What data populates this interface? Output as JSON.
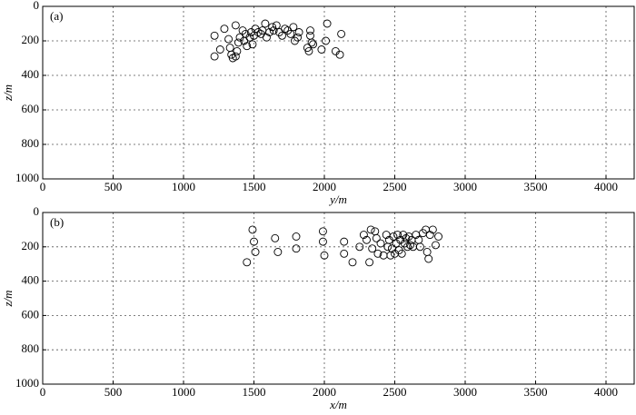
{
  "chart_data": [
    {
      "type": "scatter",
      "label": "(a)",
      "x_label": "y/m",
      "y_label": "z/m",
      "x": [
        1220,
        1220,
        1260,
        1290,
        1320,
        1330,
        1340,
        1350,
        1370,
        1370,
        1380,
        1390,
        1400,
        1420,
        1430,
        1440,
        1450,
        1470,
        1480,
        1490,
        1500,
        1510,
        1530,
        1550,
        1560,
        1580,
        1590,
        1610,
        1630,
        1640,
        1660,
        1680,
        1700,
        1720,
        1740,
        1760,
        1780,
        1790,
        1810,
        1820,
        1880,
        1890,
        1900,
        1900,
        1910,
        1920,
        1980,
        2010,
        2020,
        2080,
        2110,
        2120
      ],
      "y": [
        170,
        290,
        250,
        130,
        190,
        240,
        280,
        300,
        110,
        290,
        260,
        210,
        180,
        140,
        200,
        160,
        230,
        180,
        150,
        220,
        170,
        130,
        150,
        160,
        140,
        100,
        180,
        150,
        120,
        140,
        110,
        150,
        170,
        130,
        140,
        160,
        120,
        200,
        180,
        150,
        240,
        260,
        140,
        170,
        210,
        220,
        250,
        200,
        100,
        260,
        280,
        160
      ],
      "xlim": [
        0,
        4200
      ],
      "ylim": [
        1000,
        0
      ],
      "xticks": [
        0,
        500,
        1000,
        1500,
        2000,
        2500,
        3000,
        3500,
        4000
      ],
      "yticks": [
        0,
        200,
        400,
        600,
        800,
        1000
      ],
      "grid": true,
      "color": "#000000"
    },
    {
      "type": "scatter",
      "label": "(b)",
      "x_label": "x/m",
      "y_label": "z/m",
      "x": [
        1450,
        1490,
        1500,
        1510,
        1650,
        1670,
        1800,
        1800,
        1990,
        1990,
        2000,
        2140,
        2140,
        2200,
        2250,
        2280,
        2300,
        2320,
        2330,
        2340,
        2360,
        2370,
        2380,
        2400,
        2420,
        2440,
        2450,
        2460,
        2470,
        2480,
        2490,
        2500,
        2510,
        2520,
        2530,
        2540,
        2550,
        2560,
        2570,
        2580,
        2590,
        2600,
        2610,
        2620,
        2630,
        2650,
        2670,
        2680,
        2700,
        2720,
        2730,
        2740,
        2750,
        2770,
        2790,
        2810
      ],
      "y": [
        290,
        100,
        170,
        230,
        150,
        230,
        140,
        210,
        110,
        170,
        250,
        170,
        240,
        290,
        200,
        130,
        160,
        290,
        100,
        210,
        110,
        150,
        240,
        180,
        250,
        130,
        200,
        160,
        250,
        210,
        140,
        240,
        180,
        130,
        220,
        160,
        240,
        130,
        180,
        150,
        200,
        140,
        190,
        160,
        200,
        130,
        160,
        200,
        120,
        100,
        230,
        270,
        130,
        100,
        190,
        140
      ],
      "xlim": [
        0,
        4200
      ],
      "ylim": [
        1000,
        0
      ],
      "xticks": [
        0,
        500,
        1000,
        1500,
        2000,
        2500,
        3000,
        3500,
        4000
      ],
      "yticks": [
        0,
        200,
        400,
        600,
        800,
        1000
      ],
      "grid": true,
      "color": "#000000"
    }
  ]
}
